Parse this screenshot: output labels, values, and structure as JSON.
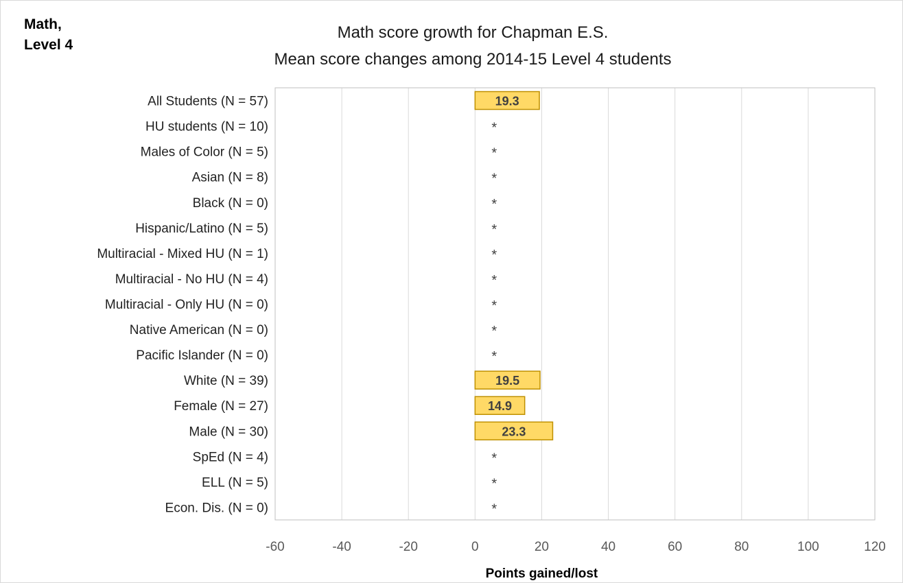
{
  "corner_label": {
    "line1": "Math,",
    "line2": "Level 4"
  },
  "chart_data": {
    "type": "bar",
    "orientation": "horizontal",
    "title": "Math score growth for Chapman E.S.",
    "subtitle": "Mean score changes among 2014-15 Level 4 students",
    "xlabel": "Points gained/lost",
    "ylabel": "",
    "xlim": [
      -60,
      120
    ],
    "x_ticks": [
      -60,
      -40,
      -20,
      0,
      20,
      40,
      60,
      80,
      100,
      120
    ],
    "grid": "vertical",
    "legend": "none",
    "suppressed_marker": "*",
    "categories": [
      "All Students (N = 57)",
      "HU students (N = 10)",
      "Males of Color (N = 5)",
      "Asian (N = 8)",
      "Black (N = 0)",
      "Hispanic/Latino (N = 5)",
      "Multiracial - Mixed HU (N = 1)",
      "Multiracial - No HU (N = 4)",
      "Multiracial - Only HU (N = 0)",
      "Native American (N = 0)",
      "Pacific Islander (N = 0)",
      "White (N = 39)",
      "Female (N = 27)",
      "Male (N = 30)",
      "SpEd (N = 4)",
      "ELL (N = 5)",
      "Econ. Dis. (N = 0)"
    ],
    "values": [
      19.3,
      null,
      null,
      null,
      null,
      null,
      null,
      null,
      null,
      null,
      null,
      19.5,
      14.9,
      23.3,
      null,
      null,
      null
    ],
    "colors": {
      "bar_fill": "#ffd966",
      "bar_stroke": "#bf9000",
      "grid": "#d9d9d9",
      "plot_border": "#bfbfbf"
    }
  }
}
